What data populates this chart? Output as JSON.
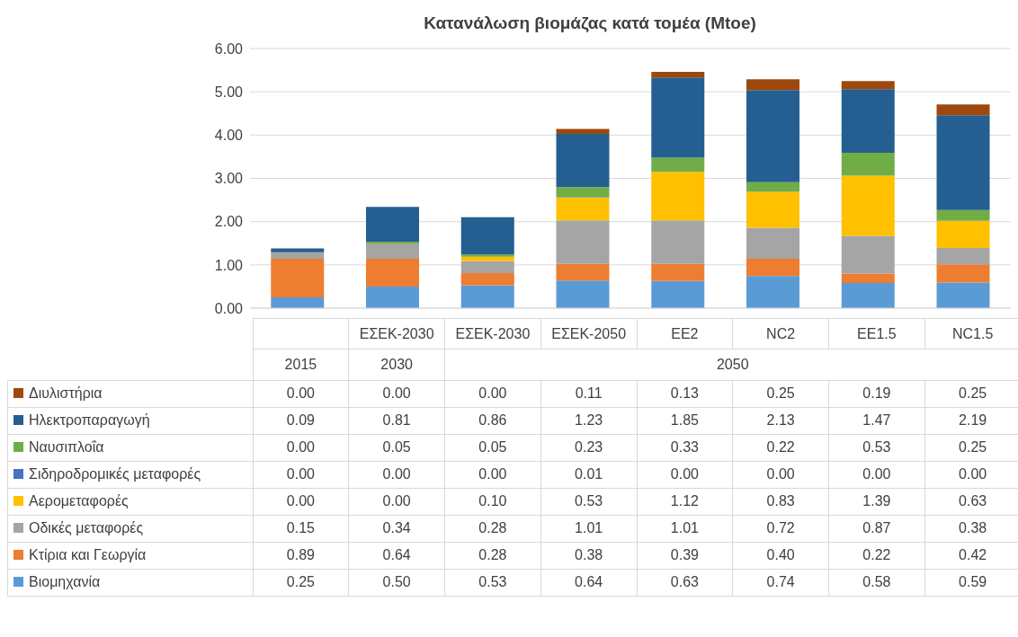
{
  "chart_data": {
    "type": "bar",
    "stacked": true,
    "title": "Κατανάλωση βιομάζας κατά τομέα (Mtoe)",
    "categories": [
      null,
      "ΕΣΕΚ-2030",
      "ΕΣΕΚ-2030",
      "ΕΣΕΚ-2050",
      "EE2",
      "NC2",
      "EE1.5",
      "NC1.5"
    ],
    "annotations": [
      "2015",
      "2030",
      "2050"
    ],
    "ylim": [
      0,
      6
    ],
    "yticks": [
      {
        "value": 0,
        "label": "0.00"
      },
      {
        "value": 1,
        "label": "1.00"
      },
      {
        "value": 2,
        "label": "2.00"
      },
      {
        "value": 3,
        "label": "3.00"
      },
      {
        "value": 4,
        "label": "4.00"
      },
      {
        "value": 5,
        "label": "5.00"
      },
      {
        "value": 6,
        "label": "6.00"
      }
    ],
    "grid": "y",
    "legend": "bottom",
    "series": [
      {
        "name": "Βιομηχανία",
        "color": "#5b9bd5",
        "values": [
          0.25,
          0.5,
          0.53,
          0.64,
          0.63,
          0.74,
          0.58,
          0.59
        ],
        "value_labels": [
          "0.25",
          "0.50",
          "0.53",
          "0.64",
          "0.63",
          "0.74",
          "0.58",
          "0.59"
        ]
      },
      {
        "name": "Κτίρια και Γεωργία",
        "color": "#ed7d31",
        "values": [
          0.89,
          0.64,
          0.28,
          0.38,
          0.39,
          0.4,
          0.22,
          0.42
        ],
        "value_labels": [
          "0.89",
          "0.64",
          "0.28",
          "0.38",
          "0.39",
          "0.40",
          "0.22",
          "0.42"
        ]
      },
      {
        "name": "Οδικές μεταφορές",
        "color": "#a5a5a5",
        "values": [
          0.15,
          0.34,
          0.28,
          1.01,
          1.01,
          0.72,
          0.87,
          0.38
        ],
        "value_labels": [
          "0.15",
          "0.34",
          "0.28",
          "1.01",
          "1.01",
          "0.72",
          "0.87",
          "0.38"
        ]
      },
      {
        "name": "Αερομεταφορές",
        "color": "#ffc000",
        "values": [
          0,
          0,
          0.1,
          0.53,
          1.12,
          0.83,
          1.39,
          0.63
        ],
        "value_labels": [
          "0.00",
          "0.00",
          "0.10",
          "0.53",
          "1.12",
          "0.83",
          "1.39",
          "0.63"
        ]
      },
      {
        "name": "Σιδηροδρομικές μεταφορές",
        "color": "#4472c4",
        "values": [
          0,
          0,
          0,
          0.01,
          0,
          0,
          0,
          0
        ],
        "value_labels": [
          "0.00",
          "0.00",
          "0.00",
          "0.01",
          "0.00",
          "0.00",
          "0.00",
          "0.00"
        ]
      },
      {
        "name": "Ναυσιπλοΐα",
        "color": "#70ad47",
        "values": [
          0,
          0.05,
          0.05,
          0.23,
          0.33,
          0.22,
          0.53,
          0.25
        ],
        "value_labels": [
          "0.00",
          "0.05",
          "0.05",
          "0.23",
          "0.33",
          "0.22",
          "0.53",
          "0.25"
        ]
      },
      {
        "name": "Ηλεκτροπαραγωγή",
        "color": "#255e91",
        "values": [
          0.09,
          0.81,
          0.86,
          1.23,
          1.85,
          2.13,
          1.47,
          2.19
        ],
        "value_labels": [
          "0.09",
          "0.81",
          "0.86",
          "1.23",
          "1.85",
          "2.13",
          "1.47",
          "2.19"
        ]
      },
      {
        "name": "Διυλιστήρια",
        "color": "#9e480e",
        "values": [
          0,
          0,
          0,
          0.11,
          0.13,
          0.25,
          0.19,
          0.25
        ],
        "value_labels": [
          "0.00",
          "0.00",
          "0.00",
          "0.11",
          "0.13",
          "0.25",
          "0.19",
          "0.25"
        ]
      }
    ]
  }
}
